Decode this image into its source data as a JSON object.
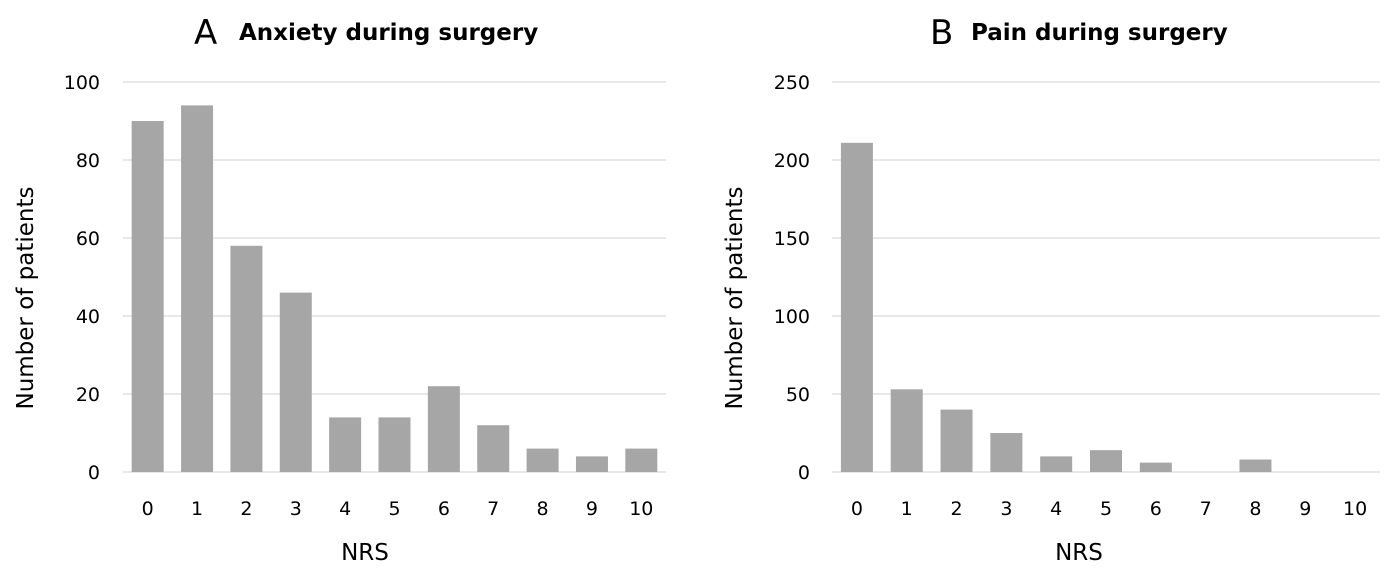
{
  "chart_data": [
    {
      "type": "bar",
      "panel_letter": "A",
      "title": "Anxiety during surgery",
      "xlabel": "NRS",
      "ylabel": "Number of patients",
      "categories": [
        "0",
        "1",
        "2",
        "3",
        "4",
        "5",
        "6",
        "7",
        "8",
        "9",
        "10"
      ],
      "values": [
        90,
        94,
        58,
        46,
        14,
        14,
        22,
        12,
        6,
        4,
        6
      ],
      "ylim": [
        0,
        100
      ],
      "yticks": [
        0,
        20,
        40,
        60,
        80,
        100
      ],
      "bar_color": "#a6a6a6",
      "grid": true
    },
    {
      "type": "bar",
      "panel_letter": "B",
      "title": "Pain during surgery",
      "xlabel": "NRS",
      "ylabel": "Number of patients",
      "categories": [
        "0",
        "1",
        "2",
        "3",
        "4",
        "5",
        "6",
        "7",
        "8",
        "9",
        "10"
      ],
      "values": [
        211,
        53,
        40,
        25,
        10,
        14,
        6,
        0,
        8,
        0,
        0
      ],
      "ylim": [
        0,
        250
      ],
      "yticks": [
        0,
        50,
        100,
        150,
        200,
        250
      ],
      "bar_color": "#a6a6a6",
      "grid": true
    }
  ]
}
